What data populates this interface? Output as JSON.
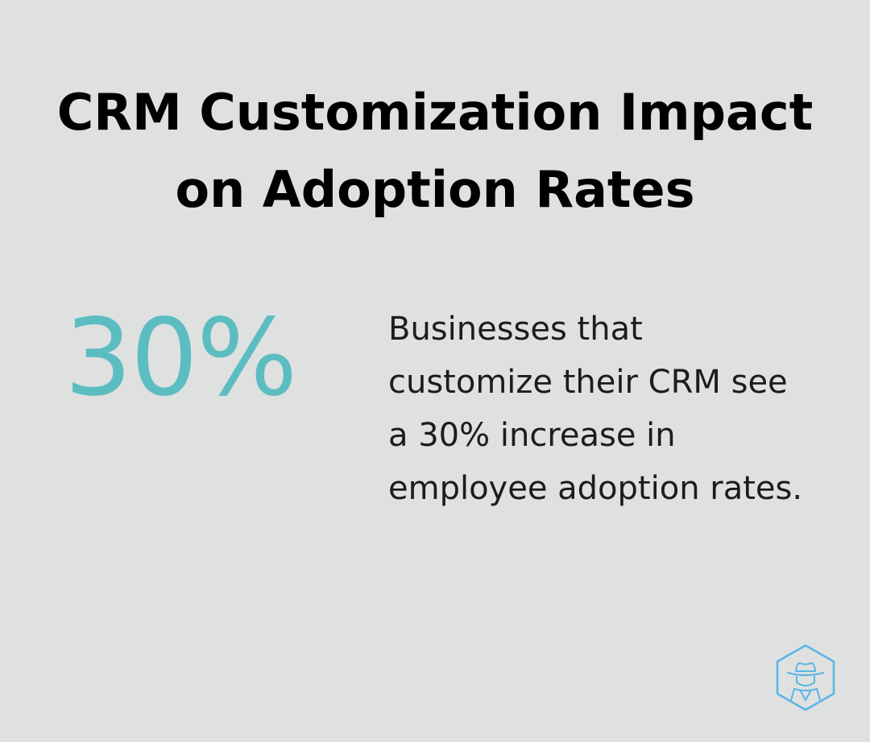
{
  "colors": {
    "background": "#dfe1e0",
    "accent": "#5cbdc1",
    "title": "#000000",
    "text": "#1c1c1c",
    "logo": "#5ab4e6"
  },
  "infographic": {
    "title_line1": "CRM Customization Impact",
    "title_line2": "on Adoption Rates",
    "stat_value": "30%",
    "description": "Businesses that customize their CRM see a 30% increase in employee adoption rates.",
    "logo_icon": "hexagon-spy-hat-icon"
  }
}
